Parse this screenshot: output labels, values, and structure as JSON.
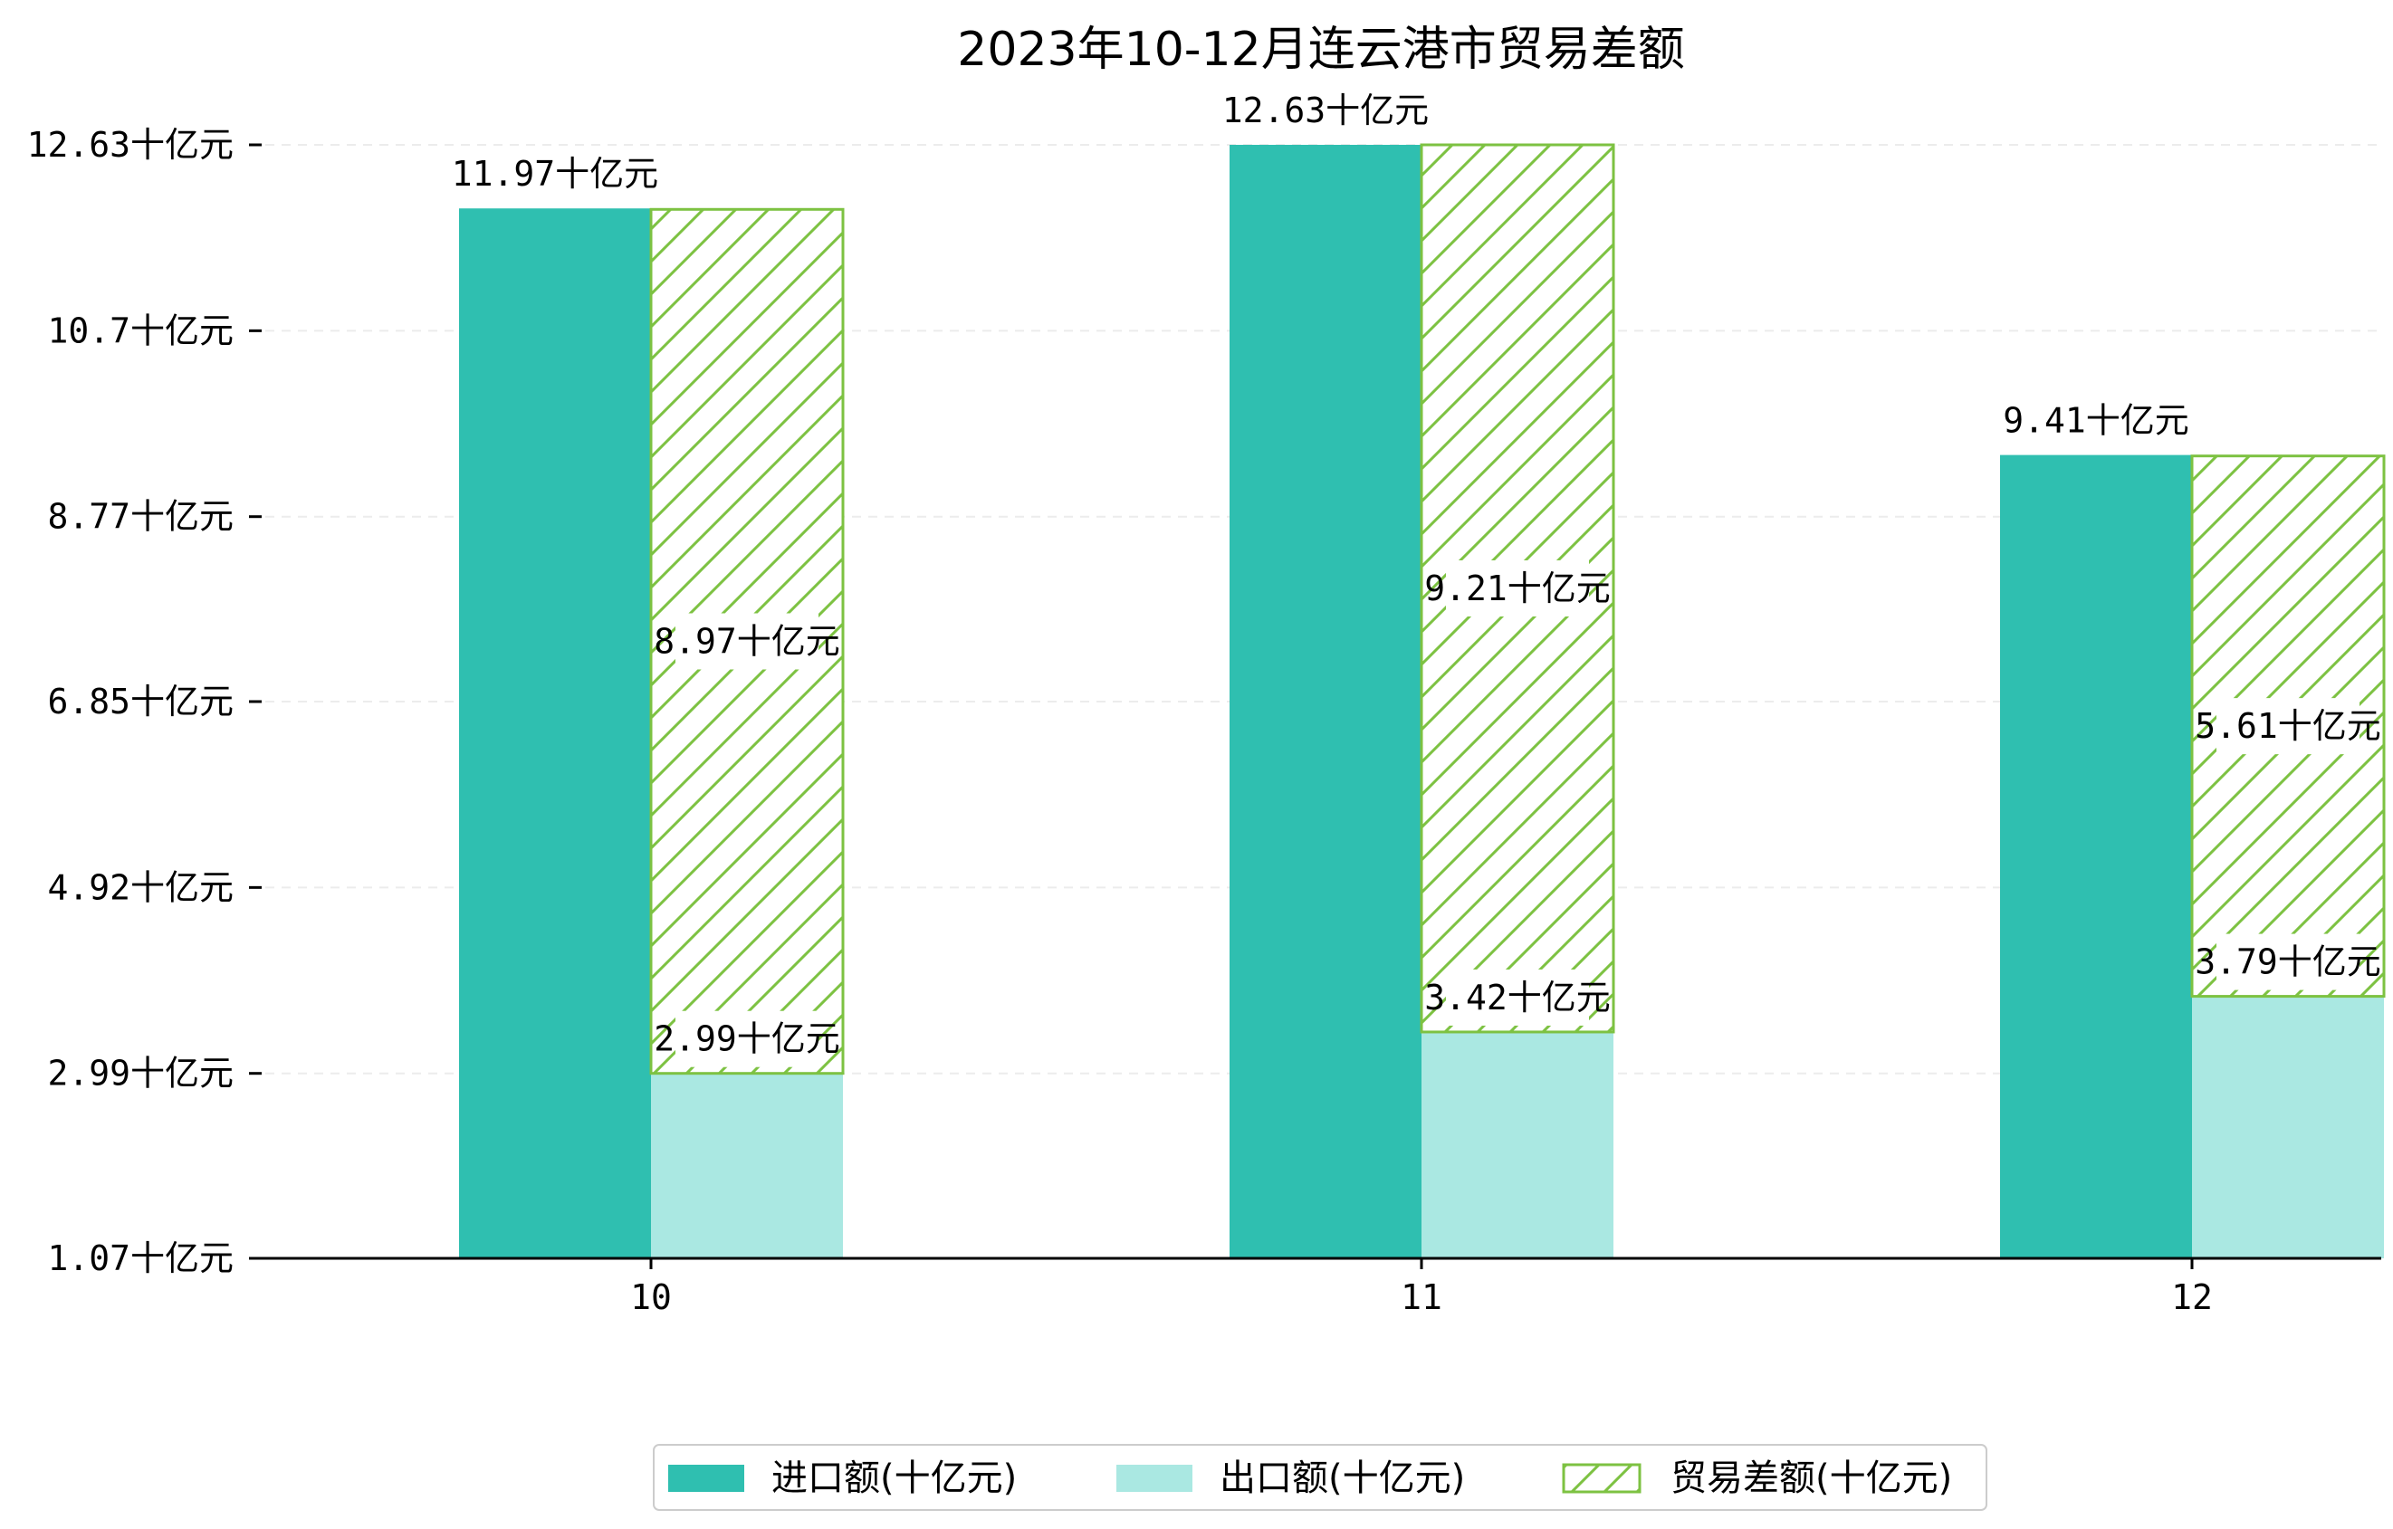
{
  "chart_data": {
    "type": "bar",
    "title": "2023年10-12月连云港市贸易差额",
    "categories": [
      "10",
      "11",
      "12"
    ],
    "unit_suffix": "十亿元",
    "series": [
      {
        "name": "进口额(十亿元)",
        "values": [
          11.97,
          12.63,
          9.41
        ],
        "color": "#2fbfb0",
        "style": "solid"
      },
      {
        "name": "出口额(十亿元)",
        "values": [
          2.99,
          3.42,
          3.79
        ],
        "color": "#aae8e2",
        "style": "solid"
      },
      {
        "name": "贸易差额(十亿元)",
        "values": [
          8.97,
          9.21,
          5.61
        ],
        "color": "#7dc242",
        "style": "hatched",
        "stacked_on": "出口额(十亿元)"
      }
    ],
    "y_ticks": [
      {
        "value": 1.07,
        "label": "1.07十亿元"
      },
      {
        "value": 2.99,
        "label": "2.99十亿元"
      },
      {
        "value": 4.92,
        "label": "4.92十亿元"
      },
      {
        "value": 6.85,
        "label": "6.85十亿元"
      },
      {
        "value": 8.77,
        "label": "8.77十亿元"
      },
      {
        "value": 10.7,
        "label": "10.7十亿元"
      },
      {
        "value": 12.63,
        "label": "12.63十亿元"
      }
    ],
    "ylim": [
      1.07,
      12.63
    ],
    "xlabel": "",
    "ylabel": "",
    "grid": "horizontal-dashed",
    "legend_position": "bottom-center"
  }
}
